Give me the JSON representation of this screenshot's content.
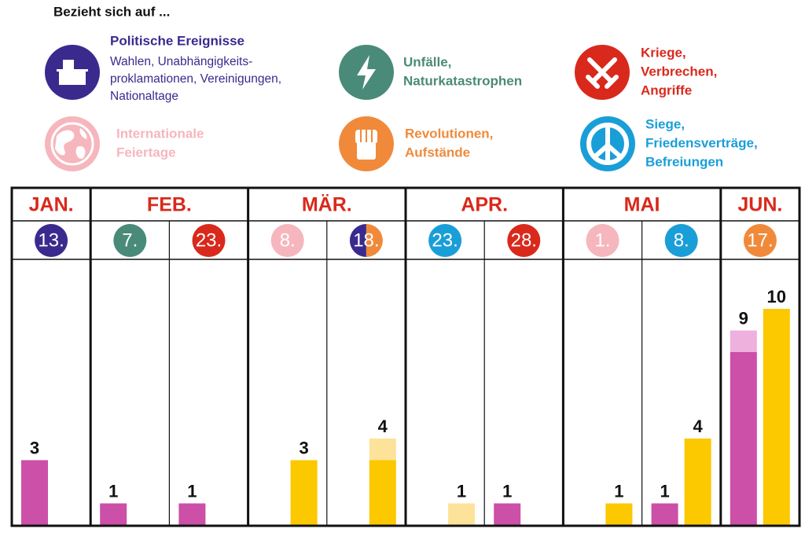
{
  "legend": {
    "title": "Bezieht sich auf ...",
    "items": [
      {
        "title": [
          "Politische Ereignisse"
        ],
        "description": [
          "Wahlen, Unabhängigkeits-",
          "proklamationen, Vereinigungen,",
          "Nationaltage"
        ],
        "color": "#3a2a8e"
      },
      {
        "title": [
          "Unfälle,",
          "Naturkatastrophen"
        ],
        "color": "#4a8a78"
      },
      {
        "title": [
          "Kriege,",
          "Verbrechen,",
          "Angriffe"
        ],
        "color": "#d9291c"
      },
      {
        "title": [
          "Internationale",
          "Feiertage"
        ],
        "color": "#f6b6bd"
      },
      {
        "title": [
          "Revolutionen,",
          "Aufstände"
        ],
        "color": "#f08a3a"
      },
      {
        "title": [
          "Siege,",
          "Friedensverträge,",
          "Befreiungen"
        ],
        "color": "#1a9ed8"
      }
    ]
  },
  "table": {
    "months": [
      {
        "name": "JAN.",
        "days": [
          {
            "day": "13.",
            "colors": [
              "#3a2a8e"
            ],
            "bars": [
              {
                "label": 3,
                "segments": [
                  {
                    "value": 3,
                    "color": "#cc4fa8"
                  }
                ]
              },
              null
            ]
          }
        ]
      },
      {
        "name": "FEB.",
        "days": [
          {
            "day": "7.",
            "colors": [
              "#4a8a78"
            ],
            "bars": [
              {
                "label": 1,
                "segments": [
                  {
                    "value": 1,
                    "color": "#cc4fa8"
                  }
                ]
              },
              null
            ]
          },
          {
            "day": "23.",
            "colors": [
              "#d9291c"
            ],
            "bars": [
              {
                "label": 1,
                "segments": [
                  {
                    "value": 1,
                    "color": "#cc4fa8"
                  }
                ]
              },
              null
            ]
          }
        ]
      },
      {
        "name": "MÄR.",
        "days": [
          {
            "day": "8.",
            "colors": [
              "#f6b6bd"
            ],
            "bars": [
              null,
              {
                "label": 3,
                "segments": [
                  {
                    "value": 3,
                    "color": "#fcc800"
                  }
                ]
              }
            ]
          },
          {
            "day": "18.",
            "colors": [
              "#3a2a8e",
              "#f08a3a"
            ],
            "bars": [
              null,
              {
                "label": 4,
                "segments": [
                  {
                    "value": 3,
                    "color": "#fcc800"
                  },
                  {
                    "value": 1,
                    "color": "#fde39a"
                  }
                ]
              }
            ]
          }
        ]
      },
      {
        "name": "APR.",
        "days": [
          {
            "day": "23.",
            "colors": [
              "#1a9ed8"
            ],
            "bars": [
              null,
              {
                "label": 1,
                "segments": [
                  {
                    "value": 1,
                    "color": "#fde39a"
                  }
                ]
              }
            ]
          },
          {
            "day": "28.",
            "colors": [
              "#d9291c"
            ],
            "bars": [
              {
                "label": 1,
                "segments": [
                  {
                    "value": 1,
                    "color": "#cc4fa8"
                  }
                ]
              },
              null
            ]
          }
        ]
      },
      {
        "name": "MAI",
        "days": [
          {
            "day": "1.",
            "colors": [
              "#f6b6bd"
            ],
            "bars": [
              null,
              {
                "label": 1,
                "segments": [
                  {
                    "value": 1,
                    "color": "#fcc800"
                  }
                ]
              }
            ]
          },
          {
            "day": "8.",
            "colors": [
              "#1a9ed8"
            ],
            "bars": [
              {
                "label": 1,
                "segments": [
                  {
                    "value": 1,
                    "color": "#cc4fa8"
                  }
                ]
              },
              {
                "label": 4,
                "segments": [
                  {
                    "value": 4,
                    "color": "#fcc800"
                  }
                ]
              }
            ]
          }
        ]
      },
      {
        "name": "JUN.",
        "days": [
          {
            "day": "17.",
            "colors": [
              "#f08a3a"
            ],
            "bars": [
              {
                "label": 9,
                "segments": [
                  {
                    "value": 8,
                    "color": "#cc4fa8"
                  },
                  {
                    "value": 1,
                    "color": "#eeb0dd"
                  }
                ]
              },
              {
                "label": 10,
                "segments": [
                  {
                    "value": 10,
                    "color": "#fcc800"
                  }
                ]
              }
            ]
          }
        ]
      }
    ]
  }
}
